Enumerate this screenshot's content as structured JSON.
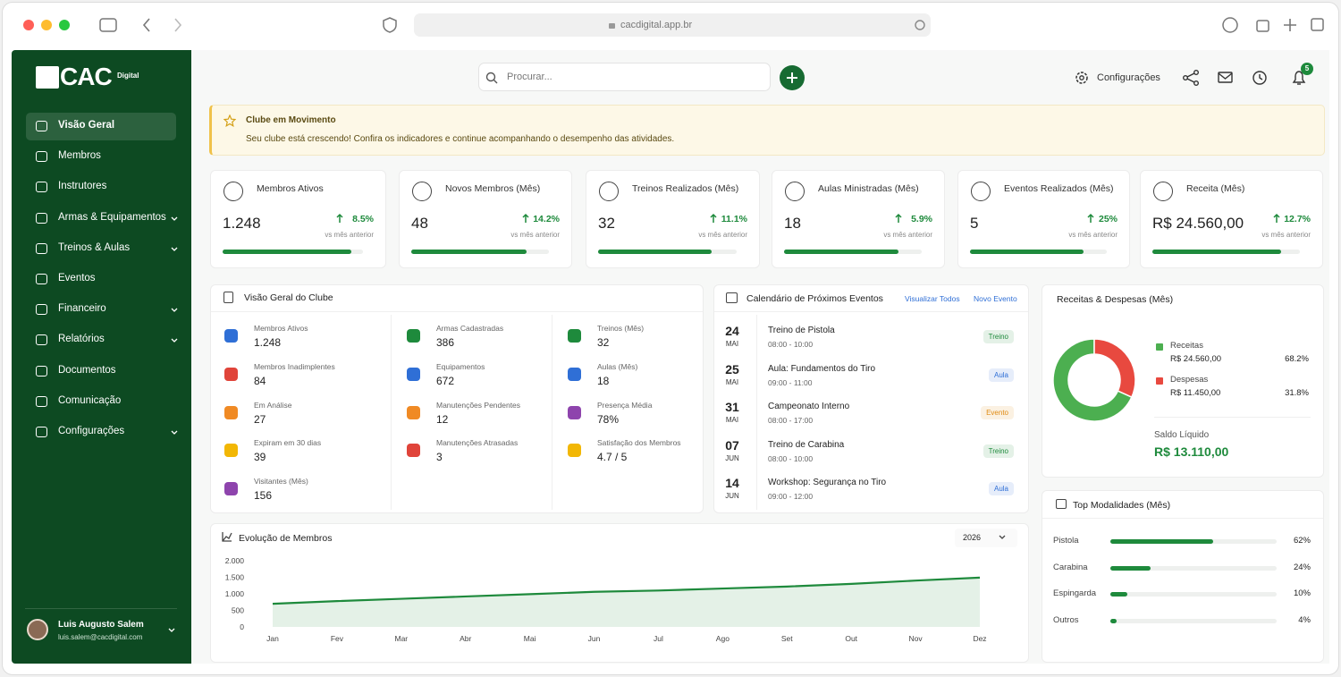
{
  "browser": {
    "url": "cacdigital.app.br"
  },
  "sidebar": {
    "logo": "CAC",
    "logo_sub": "Digital",
    "active": 0,
    "nav": [
      {
        "label": "Visão Geral",
        "expandable": false
      },
      {
        "label": "Membros",
        "expandable": false
      },
      {
        "label": "Instrutores",
        "expandable": false
      },
      {
        "label": "Armas & Equipamentos",
        "expandable": true
      },
      {
        "label": "Treinos & Aulas",
        "expandable": true
      },
      {
        "label": "Eventos",
        "expandable": false
      },
      {
        "label": "Financeiro",
        "expandable": true
      },
      {
        "label": "Relatórios",
        "expandable": true
      },
      {
        "label": "Documentos",
        "expandable": false
      },
      {
        "label": "Comunicação",
        "expandable": false
      },
      {
        "label": "Configurações",
        "expandable": true
      }
    ],
    "user": {
      "name": "Luis Augusto Salem",
      "email": "luis.salem@cacdigital.com"
    }
  },
  "topbar": {
    "search": "Procurar...",
    "settings": "Configurações",
    "notifications": "5"
  },
  "banner": {
    "title": "Clube em Movimento",
    "text": "Seu clube está crescendo! Confira os indicadores e continue acompanhando o desempenho das atividades."
  },
  "kpis": [
    {
      "label": "Membros Ativos",
      "value": "1.248",
      "change": "8.5%",
      "note": "vs mês anterior",
      "progress": 92
    },
    {
      "label": "Novos Membros (Mês)",
      "value": "48",
      "change": "14.2%",
      "note": "vs mês anterior",
      "progress": 84
    },
    {
      "label": "Treinos Realizados (Mês)",
      "value": "32",
      "change": "11.1%",
      "note": "vs mês anterior",
      "progress": 82
    },
    {
      "label": "Aulas Ministradas (Mês)",
      "value": "18",
      "change": "5.9%",
      "note": "vs mês anterior",
      "progress": 83
    },
    {
      "label": "Eventos Realizados (Mês)",
      "value": "5",
      "change": "25%",
      "note": "vs mês anterior",
      "progress": 83
    },
    {
      "label": "Receita (Mês)",
      "value": "R$ 24.560,00",
      "change": "12.7%",
      "note": "vs mês anterior",
      "progress": 87
    }
  ],
  "overview": {
    "title": "Visão Geral do Clube",
    "columns": [
      [
        {
          "label": "Membros Ativos",
          "value": "1.248",
          "color": "#2f6fd6"
        },
        {
          "label": "Membros Inadimplentes",
          "value": "84",
          "color": "#e0443a"
        },
        {
          "label": "Em Análise",
          "value": "27",
          "color": "#f08a24"
        },
        {
          "label": "Expiram em 30 dias",
          "value": "39",
          "color": "#f2b705"
        },
        {
          "label": "Visitantes (Mês)",
          "value": "156",
          "color": "#8e44ad"
        }
      ],
      [
        {
          "label": "Armas Cadastradas",
          "value": "386",
          "color": "#1e8a3c"
        },
        {
          "label": "Equipamentos",
          "value": "672",
          "color": "#2f6fd6"
        },
        {
          "label": "Manutenções Pendentes",
          "value": "12",
          "color": "#f08a24"
        },
        {
          "label": "Manutenções Atrasadas",
          "value": "3",
          "color": "#e0443a"
        }
      ],
      [
        {
          "label": "Treinos (Mês)",
          "value": "32",
          "color": "#1e8a3c"
        },
        {
          "label": "Aulas (Mês)",
          "value": "18",
          "color": "#2f6fd6"
        },
        {
          "label": "Presença Média",
          "value": "78%",
          "color": "#8e44ad"
        },
        {
          "label": "Satisfação dos Membros",
          "value": "4.7 / 5",
          "color": "#f2b705"
        }
      ]
    ]
  },
  "calendar": {
    "title": "Calendário de Próximos Eventos",
    "links": [
      "Visualizar Todos",
      "Novo Evento"
    ],
    "events": [
      {
        "day": "24",
        "month": "MAI",
        "title": "Treino de Pistola",
        "time": "08:00 - 10:00",
        "tag": "Treino",
        "tag_color": "#1e8a3c"
      },
      {
        "day": "25",
        "month": "MAI",
        "title": "Aula: Fundamentos do Tiro",
        "time": "09:00 - 11:00",
        "tag": "Aula",
        "tag_color": "#2f6fd6"
      },
      {
        "day": "31",
        "month": "MAI",
        "title": "Campeonato Interno",
        "time": "08:00 - 17:00",
        "tag": "Evento",
        "tag_color": "#e08a12"
      },
      {
        "day": "07",
        "month": "JUN",
        "title": "Treino de Carabina",
        "time": "08:00 - 10:00",
        "tag": "Treino",
        "tag_color": "#1e8a3c"
      },
      {
        "day": "14",
        "month": "JUN",
        "title": "Workshop: Segurança no Tiro",
        "time": "09:00 - 12:00",
        "tag": "Aula",
        "tag_color": "#2f6fd6"
      }
    ]
  },
  "chart_data": [
    {
      "type": "line",
      "title": "Evolução de Membros",
      "period": "2026",
      "categories": [
        "Jan",
        "Fev",
        "Mar",
        "Abr",
        "Mai",
        "Jun",
        "Jul",
        "Ago",
        "Set",
        "Out",
        "Nov",
        "Dez"
      ],
      "values": [
        700,
        780,
        850,
        920,
        990,
        1060,
        1100,
        1160,
        1220,
        1300,
        1400,
        1490
      ],
      "color": "#1e8a3c",
      "area": true,
      "ylim": [
        0,
        2000
      ],
      "yticks": [
        0,
        500,
        {
          "value": 1000,
          "label": "1.000"
        },
        {
          "value": 1500,
          "label": "1.500"
        },
        {
          "value": 2000,
          "label": "2.000"
        }
      ]
    },
    {
      "type": "pie",
      "donut": true,
      "title": "Receitas & Despesas (Mês)",
      "categories": [
        "Receitas",
        "Despesas"
      ],
      "values": [
        68.2,
        31.8
      ],
      "value_labels": [
        "68.2%",
        "31.8%"
      ],
      "colors": [
        "#4caf50",
        "#e8493f"
      ],
      "amounts": [
        "R$ 24.560,00",
        "R$ 11.450,00"
      ],
      "balance_label": "Saldo Líquido",
      "balance": "R$ 13.110,00"
    },
    {
      "type": "bar",
      "orientation": "horizontal",
      "title": "Top Modalidades (Mês)",
      "categories": [
        "Pistola",
        "Carabina",
        "Espingarda",
        "Outros"
      ],
      "values": [
        62,
        24,
        10,
        4
      ],
      "value_labels": [
        "62%",
        "24%",
        "10%",
        "4%"
      ],
      "xlim": [
        0,
        100
      ],
      "color": "#1e8a3c"
    }
  ]
}
